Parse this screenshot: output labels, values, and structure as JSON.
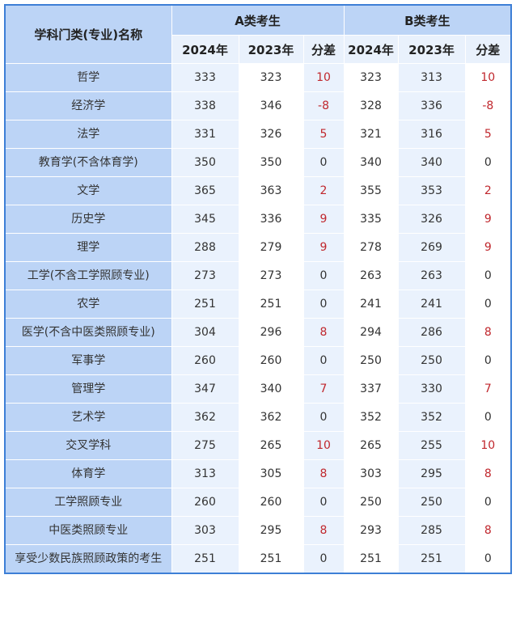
{
  "header": {
    "name_col": "学科门类(专业)名称",
    "group_a": "A类考生",
    "group_b": "B类考生",
    "sub_cols": [
      "2024年",
      "2023年",
      "分差",
      "2024年",
      "2023年",
      "分差"
    ]
  },
  "colors": {
    "header_bg": "#bcd4f6",
    "border": "#3d7fd6",
    "diff_positive_negative": "#c0272d"
  },
  "rows": [
    {
      "name": "哲学",
      "v": [
        "333",
        "323",
        "10",
        "323",
        "313",
        "10"
      ]
    },
    {
      "name": "经济学",
      "v": [
        "338",
        "346",
        "-8",
        "328",
        "336",
        "-8"
      ]
    },
    {
      "name": "法学",
      "v": [
        "331",
        "326",
        "5",
        "321",
        "316",
        "5"
      ]
    },
    {
      "name": "教育学(不含体育学)",
      "v": [
        "350",
        "350",
        "0",
        "340",
        "340",
        "0"
      ]
    },
    {
      "name": "文学",
      "v": [
        "365",
        "363",
        "2",
        "355",
        "353",
        "2"
      ]
    },
    {
      "name": "历史学",
      "v": [
        "345",
        "336",
        "9",
        "335",
        "326",
        "9"
      ]
    },
    {
      "name": "理学",
      "v": [
        "288",
        "279",
        "9",
        "278",
        "269",
        "9"
      ]
    },
    {
      "name": "工学(不含工学照顾专业)",
      "v": [
        "273",
        "273",
        "0",
        "263",
        "263",
        "0"
      ]
    },
    {
      "name": "农学",
      "v": [
        "251",
        "251",
        "0",
        "241",
        "241",
        "0"
      ]
    },
    {
      "name": "医学(不含中医类照顾专业)",
      "v": [
        "304",
        "296",
        "8",
        "294",
        "286",
        "8"
      ]
    },
    {
      "name": "军事学",
      "v": [
        "260",
        "260",
        "0",
        "250",
        "250",
        "0"
      ]
    },
    {
      "name": "管理学",
      "v": [
        "347",
        "340",
        "7",
        "337",
        "330",
        "7"
      ]
    },
    {
      "name": "艺术学",
      "v": [
        "362",
        "362",
        "0",
        "352",
        "352",
        "0"
      ]
    },
    {
      "name": "交叉学科",
      "v": [
        "275",
        "265",
        "10",
        "265",
        "255",
        "10"
      ]
    },
    {
      "name": "体育学",
      "v": [
        "313",
        "305",
        "8",
        "303",
        "295",
        "8"
      ]
    },
    {
      "name": "工学照顾专业",
      "v": [
        "260",
        "260",
        "0",
        "250",
        "250",
        "0"
      ]
    },
    {
      "name": "中医类照顾专业",
      "v": [
        "303",
        "295",
        "8",
        "293",
        "285",
        "8"
      ]
    },
    {
      "name": "享受少数民族照顾政策的考生",
      "v": [
        "251",
        "251",
        "0",
        "251",
        "251",
        "0"
      ]
    }
  ]
}
